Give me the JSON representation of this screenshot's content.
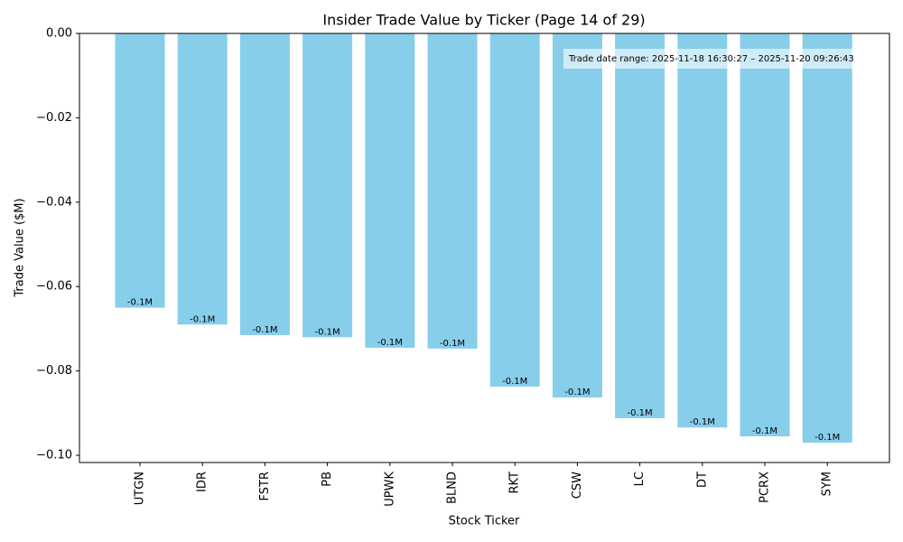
{
  "chart_data": {
    "type": "bar",
    "title": "Insider Trade Value by Ticker (Page 14 of 29)",
    "xlabel": "Stock Ticker",
    "ylabel": "Trade Value ($M)",
    "annotation": "Trade date range: 2025-11-18 16:30:27 – 2025-11-20 09:26:43",
    "categories": [
      "UTGN",
      "IDR",
      "FSTR",
      "PB",
      "UPWK",
      "BLND",
      "RKT",
      "CSW",
      "LC",
      "DT",
      "PCRX",
      "SYM"
    ],
    "values": [
      -0.065,
      -0.069,
      -0.0715,
      -0.072,
      -0.0745,
      -0.0747,
      -0.0837,
      -0.0863,
      -0.0912,
      -0.0934,
      -0.0955,
      -0.097
    ],
    "value_labels": [
      "-0.1M",
      "-0.1M",
      "-0.1M",
      "-0.1M",
      "-0.1M",
      "-0.1M",
      "-0.1M",
      "-0.1M",
      "-0.1M",
      "-0.1M",
      "-0.1M",
      "-0.1M"
    ],
    "color": "#87ceeb",
    "ylim": [
      -0.1017,
      0
    ],
    "yticks": [
      {
        "value": 0,
        "label": "0.00"
      },
      {
        "value": -0.02,
        "label": "−0.02"
      },
      {
        "value": -0.04,
        "label": "−0.04"
      },
      {
        "value": -0.06,
        "label": "−0.06"
      },
      {
        "value": -0.08,
        "label": "−0.08"
      },
      {
        "value": -0.1,
        "label": "−0.10"
      }
    ],
    "grid": false
  }
}
